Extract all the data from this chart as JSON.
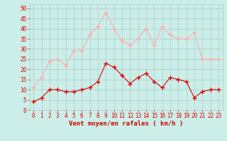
{
  "hours": [
    0,
    1,
    2,
    3,
    4,
    5,
    6,
    7,
    8,
    9,
    10,
    11,
    12,
    13,
    14,
    15,
    16,
    17,
    18,
    19,
    20,
    21,
    22,
    23
  ],
  "wind_avg": [
    4,
    6,
    10,
    10,
    9,
    9,
    10,
    11,
    14,
    23,
    21,
    17,
    13,
    16,
    18,
    14,
    11,
    16,
    15,
    14,
    6,
    9,
    10,
    10
  ],
  "wind_gust": [
    11,
    16,
    24,
    25,
    22,
    29,
    29,
    37,
    41,
    48,
    40,
    34,
    32,
    35,
    40,
    32,
    41,
    37,
    35,
    35,
    38,
    25,
    25,
    25
  ],
  "avg_color": "#dd0000",
  "gust_color": "#ffaaaa",
  "bg_color": "#cceee8",
  "grid_color": "#aacccc",
  "xlabel": "Vent moyen/en rafales ( km/h )",
  "xlabel_color": "#cc0000",
  "ytick_labels": [
    "0",
    "5",
    "10",
    "15",
    "20",
    "25",
    "30",
    "35",
    "40",
    "45",
    "50"
  ],
  "ytick_vals": [
    0,
    5,
    10,
    15,
    20,
    25,
    30,
    35,
    40,
    45,
    50
  ],
  "ylim": [
    0,
    52
  ],
  "xlim": [
    -0.5,
    23.5
  ],
  "marker": "+",
  "markersize": 4,
  "linewidth": 0.8,
  "tick_fontsize": 5.5,
  "xlabel_fontsize": 6.5
}
